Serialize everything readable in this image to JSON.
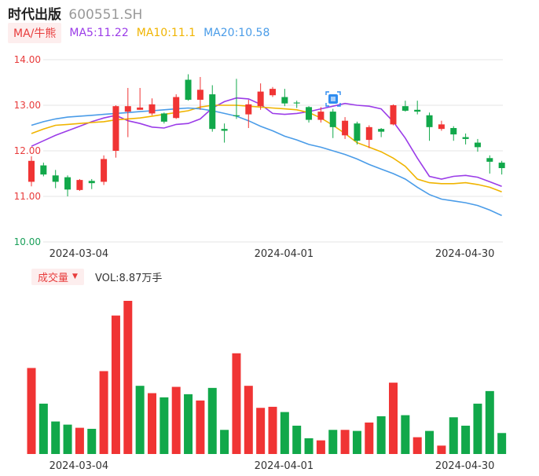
{
  "header": {
    "name": "时代出版",
    "code": "600551.SH"
  },
  "ma_legend": {
    "button_label": "MA/牛熊",
    "items": [
      {
        "label": "MA5:11.22",
        "color": "#9b3ce8"
      },
      {
        "label": "MA10:11.1",
        "color": "#f0b400"
      },
      {
        "label": "MA20:10.58",
        "color": "#4a9ce8"
      }
    ]
  },
  "volume_legend": {
    "button_label": "成交量",
    "value_label": "VOL:8.87万手"
  },
  "colors": {
    "up": "#f03434",
    "down": "#11a84a",
    "grid": "#e6e6e6"
  },
  "chart_data": [
    {
      "type": "candlestick",
      "y_ticks": [
        "14.00",
        "13.00",
        "12.00",
        "11.00",
        "10.00"
      ],
      "ylim": [
        10.0,
        14.0
      ],
      "x_tick_labels": [
        {
          "index": 4,
          "label": "2024-03-04"
        },
        {
          "index": 21,
          "label": "2024-04-01"
        },
        {
          "index": 36,
          "label": "2024-04-30"
        }
      ],
      "candles": [
        {
          "o": 11.32,
          "c": 11.78,
          "h": 11.88,
          "l": 11.22
        },
        {
          "o": 11.68,
          "c": 11.48,
          "h": 11.74,
          "l": 11.44
        },
        {
          "o": 11.46,
          "c": 11.32,
          "h": 11.58,
          "l": 11.18
        },
        {
          "o": 11.42,
          "c": 11.15,
          "h": 11.46,
          "l": 11.0
        },
        {
          "o": 11.14,
          "c": 11.36,
          "h": 11.38,
          "l": 11.12
        },
        {
          "o": 11.34,
          "c": 11.29,
          "h": 11.38,
          "l": 11.16
        },
        {
          "o": 11.32,
          "c": 11.82,
          "h": 11.9,
          "l": 11.25
        },
        {
          "o": 12.0,
          "c": 12.98,
          "h": 13.0,
          "l": 11.85
        },
        {
          "o": 12.86,
          "c": 12.98,
          "h": 13.38,
          "l": 12.3
        },
        {
          "o": 12.9,
          "c": 12.95,
          "h": 13.38,
          "l": 12.9
        },
        {
          "o": 12.82,
          "c": 13.02,
          "h": 13.15,
          "l": 12.78
        },
        {
          "o": 12.82,
          "c": 12.64,
          "h": 12.84,
          "l": 12.6
        },
        {
          "o": 12.72,
          "c": 13.18,
          "h": 13.24,
          "l": 12.7
        },
        {
          "o": 13.56,
          "c": 13.12,
          "h": 13.68,
          "l": 13.1
        },
        {
          "o": 13.12,
          "c": 13.34,
          "h": 13.62,
          "l": 12.9
        },
        {
          "o": 13.24,
          "c": 12.48,
          "h": 13.44,
          "l": 12.42
        },
        {
          "o": 12.48,
          "c": 12.44,
          "h": 12.6,
          "l": 12.18
        },
        {
          "o": 12.78,
          "c": 12.76,
          "h": 13.58,
          "l": 12.7
        },
        {
          "o": 12.8,
          "c": 13.02,
          "h": 13.12,
          "l": 12.5
        },
        {
          "o": 12.98,
          "c": 13.3,
          "h": 13.48,
          "l": 12.9
        },
        {
          "o": 13.22,
          "c": 13.36,
          "h": 13.4,
          "l": 13.18
        },
        {
          "o": 13.18,
          "c": 13.04,
          "h": 13.36,
          "l": 12.98
        },
        {
          "o": 13.06,
          "c": 13.04,
          "h": 13.1,
          "l": 12.94
        },
        {
          "o": 12.96,
          "c": 12.68,
          "h": 12.98,
          "l": 12.62
        },
        {
          "o": 12.68,
          "c": 12.86,
          "h": 12.96,
          "l": 12.62
        },
        {
          "o": 12.86,
          "c": 12.52,
          "h": 12.92,
          "l": 12.28
        },
        {
          "o": 12.34,
          "c": 12.66,
          "h": 12.74,
          "l": 12.26
        },
        {
          "o": 12.6,
          "c": 12.22,
          "h": 12.64,
          "l": 12.14
        },
        {
          "o": 12.24,
          "c": 12.52,
          "h": 12.56,
          "l": 12.06
        },
        {
          "o": 12.48,
          "c": 12.42,
          "h": 12.5,
          "l": 12.3
        },
        {
          "o": 12.58,
          "c": 13.0,
          "h": 13.02,
          "l": 12.56
        },
        {
          "o": 12.98,
          "c": 12.88,
          "h": 13.1,
          "l": 12.86
        },
        {
          "o": 12.9,
          "c": 12.86,
          "h": 13.1,
          "l": 12.8
        },
        {
          "o": 12.78,
          "c": 12.52,
          "h": 12.84,
          "l": 12.22
        },
        {
          "o": 12.48,
          "c": 12.58,
          "h": 12.66,
          "l": 12.44
        },
        {
          "o": 12.5,
          "c": 12.36,
          "h": 12.54,
          "l": 12.22
        },
        {
          "o": 12.3,
          "c": 12.26,
          "h": 12.38,
          "l": 12.14
        },
        {
          "o": 12.18,
          "c": 12.08,
          "h": 12.26,
          "l": 11.98
        },
        {
          "o": 11.84,
          "c": 11.76,
          "h": 11.9,
          "l": 11.5
        },
        {
          "o": 11.74,
          "c": 11.62,
          "h": 11.78,
          "l": 11.48
        }
      ],
      "ma_lines": [
        {
          "label": "MA5",
          "color": "#9b3ce8",
          "values": [
            12.1,
            12.22,
            12.34,
            12.44,
            12.54,
            12.64,
            12.72,
            12.78,
            12.66,
            12.6,
            12.52,
            12.5,
            12.58,
            12.6,
            12.7,
            12.94,
            13.08,
            13.16,
            13.14,
            13.02,
            12.82,
            12.8,
            12.82,
            12.86,
            12.92,
            12.98,
            13.04,
            13.0,
            12.98,
            12.92,
            12.64,
            12.28,
            11.84,
            11.44,
            11.38,
            11.44,
            11.46,
            11.42,
            11.32,
            11.22
          ]
        },
        {
          "label": "MA10",
          "color": "#f0b400",
          "values": [
            12.38,
            12.48,
            12.56,
            12.58,
            12.6,
            12.62,
            12.64,
            12.68,
            12.7,
            12.72,
            12.76,
            12.8,
            12.84,
            12.88,
            12.96,
            13.0,
            13.0,
            13.0,
            12.98,
            12.96,
            12.94,
            12.92,
            12.9,
            12.84,
            12.72,
            12.56,
            12.38,
            12.18,
            12.08,
            11.98,
            11.84,
            11.66,
            11.38,
            11.3,
            11.28,
            11.28,
            11.3,
            11.26,
            11.2,
            11.1
          ]
        },
        {
          "label": "MA20",
          "color": "#4a9ce8",
          "values": [
            12.56,
            12.64,
            12.7,
            12.74,
            12.76,
            12.78,
            12.8,
            12.82,
            12.84,
            12.86,
            12.88,
            12.9,
            12.92,
            12.94,
            12.92,
            12.88,
            12.82,
            12.76,
            12.66,
            12.54,
            12.44,
            12.32,
            12.24,
            12.14,
            12.08,
            12.0,
            11.92,
            11.82,
            11.7,
            11.6,
            11.5,
            11.38,
            11.2,
            11.04,
            10.94,
            10.9,
            10.86,
            10.8,
            10.7,
            10.58
          ]
        }
      ]
    },
    {
      "type": "bar",
      "title": "成交量",
      "values": [
        {
          "v": 0.82,
          "up": true
        },
        {
          "v": 0.48,
          "up": false
        },
        {
          "v": 0.31,
          "up": false
        },
        {
          "v": 0.28,
          "up": false
        },
        {
          "v": 0.25,
          "up": true
        },
        {
          "v": 0.24,
          "up": false
        },
        {
          "v": 0.79,
          "up": true
        },
        {
          "v": 1.32,
          "up": true
        },
        {
          "v": 1.46,
          "up": true
        },
        {
          "v": 0.65,
          "up": false
        },
        {
          "v": 0.58,
          "up": true
        },
        {
          "v": 0.54,
          "up": false
        },
        {
          "v": 0.64,
          "up": true
        },
        {
          "v": 0.57,
          "up": false
        },
        {
          "v": 0.51,
          "up": true
        },
        {
          "v": 0.63,
          "up": false
        },
        {
          "v": 0.23,
          "up": false
        },
        {
          "v": 0.96,
          "up": true
        },
        {
          "v": 0.65,
          "up": true
        },
        {
          "v": 0.44,
          "up": true
        },
        {
          "v": 0.45,
          "up": true
        },
        {
          "v": 0.4,
          "up": false
        },
        {
          "v": 0.27,
          "up": false
        },
        {
          "v": 0.15,
          "up": false
        },
        {
          "v": 0.13,
          "up": true
        },
        {
          "v": 0.23,
          "up": false
        },
        {
          "v": 0.23,
          "up": true
        },
        {
          "v": 0.22,
          "up": false
        },
        {
          "v": 0.3,
          "up": true
        },
        {
          "v": 0.36,
          "up": false
        },
        {
          "v": 0.68,
          "up": true
        },
        {
          "v": 0.37,
          "up": false
        },
        {
          "v": 0.16,
          "up": true
        },
        {
          "v": 0.22,
          "up": false
        },
        {
          "v": 0.08,
          "up": true
        },
        {
          "v": 0.35,
          "up": false
        },
        {
          "v": 0.27,
          "up": false
        },
        {
          "v": 0.48,
          "up": false
        },
        {
          "v": 0.6,
          "up": false
        },
        {
          "v": 0.2,
          "up": false
        }
      ],
      "ylim": [
        0,
        1.46
      ]
    }
  ]
}
